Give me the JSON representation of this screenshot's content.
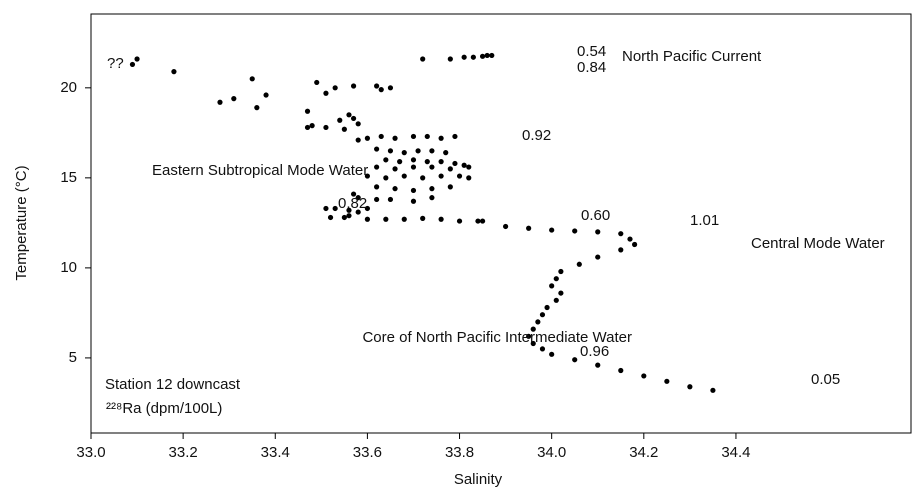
{
  "chart_data": {
    "type": "scatter",
    "x_label": "Salinity",
    "y_label": "Temperature (°C)",
    "color": "#000000",
    "x": [
      33.09,
      33.1,
      33.18,
      33.28,
      33.31,
      33.35,
      33.36,
      33.38,
      33.49,
      33.51,
      33.53,
      33.57,
      33.62,
      33.63,
      33.65,
      33.47,
      33.47,
      33.48,
      33.54,
      33.51,
      33.56,
      33.57,
      33.58,
      33.55,
      33.72,
      33.78,
      33.81,
      33.83,
      33.85,
      33.86,
      33.87,
      33.58,
      33.6,
      33.63,
      33.66,
      33.7,
      33.73,
      33.76,
      33.79,
      33.62,
      33.65,
      33.68,
      33.71,
      33.74,
      33.77,
      33.64,
      33.67,
      33.7,
      33.73,
      33.76,
      33.79,
      33.81,
      33.62,
      33.66,
      33.7,
      33.74,
      33.78,
      33.82,
      33.6,
      33.64,
      33.68,
      33.72,
      33.76,
      33.8,
      33.82,
      33.62,
      33.66,
      33.7,
      33.74,
      33.78,
      33.58,
      33.62,
      33.65,
      33.7,
      33.74,
      33.53,
      33.56,
      33.58,
      33.6,
      33.57,
      33.56,
      33.52,
      33.51,
      33.55,
      33.6,
      33.64,
      33.68,
      33.72,
      33.76,
      33.8,
      33.84,
      33.85,
      33.9,
      33.95,
      34.0,
      34.05,
      34.1,
      34.15,
      34.17,
      34.18,
      34.15,
      34.1,
      34.06,
      34.02,
      34.01,
      34.0,
      34.02,
      34.01,
      33.99,
      33.98,
      33.97,
      33.96,
      33.95,
      33.96,
      33.98,
      34.0,
      34.05,
      34.1,
      34.15,
      34.2,
      34.25,
      34.3,
      34.35
    ],
    "values": [
      21.3,
      21.6,
      20.9,
      19.2,
      19.4,
      20.5,
      18.9,
      19.6,
      20.3,
      19.7,
      20.0,
      20.1,
      20.1,
      19.9,
      20.0,
      18.7,
      17.8,
      17.9,
      18.2,
      17.8,
      18.5,
      18.3,
      18.0,
      17.7,
      21.6,
      21.6,
      21.7,
      21.7,
      21.75,
      21.8,
      21.8,
      17.1,
      17.2,
      17.3,
      17.2,
      17.3,
      17.3,
      17.2,
      17.3,
      16.6,
      16.5,
      16.4,
      16.5,
      16.5,
      16.4,
      16.0,
      15.9,
      16.0,
      15.9,
      15.9,
      15.8,
      15.7,
      15.6,
      15.5,
      15.6,
      15.6,
      15.5,
      15.6,
      15.1,
      15.0,
      15.1,
      15.0,
      15.1,
      15.1,
      15.0,
      14.5,
      14.4,
      14.3,
      14.4,
      14.5,
      13.9,
      13.8,
      13.8,
      13.7,
      13.9,
      13.3,
      13.2,
      13.1,
      13.3,
      14.1,
      12.9,
      12.8,
      13.3,
      12.8,
      12.7,
      12.7,
      12.7,
      12.75,
      12.7,
      12.6,
      12.6,
      12.6,
      12.3,
      12.2,
      12.1,
      12.05,
      12.0,
      11.9,
      11.6,
      11.3,
      11.0,
      10.6,
      10.2,
      9.8,
      9.4,
      9.0,
      8.6,
      8.2,
      7.8,
      7.4,
      7.0,
      6.6,
      6.2,
      5.8,
      5.5,
      5.2,
      4.9,
      4.6,
      4.3,
      4.0,
      3.7,
      3.4,
      3.2
    ],
    "xlim": [
      33.0,
      34.78
    ],
    "ylim": [
      0.83,
      24.1
    ],
    "xticks": [
      {
        "value": 33.0,
        "label": "33.0"
      },
      33.2,
      33.4,
      33.6,
      33.8,
      {
        "value": 34.0,
        "label": "34.0"
      },
      34.2,
      34.4
    ],
    "yticks": [
      5,
      10,
      15,
      20
    ],
    "annotations": [
      "North Pacific Current",
      "0.54",
      "0.84",
      "??",
      "Eastern Subtropical Mode Water",
      "0.92",
      "0.82",
      "0.60",
      "1.01",
      "Central Mode Water",
      "Core of North Pacific Intermediate Water",
      "0.96",
      "0.05",
      "Station 12 downcast",
      "²²⁸Ra (dpm/100L)"
    ]
  }
}
